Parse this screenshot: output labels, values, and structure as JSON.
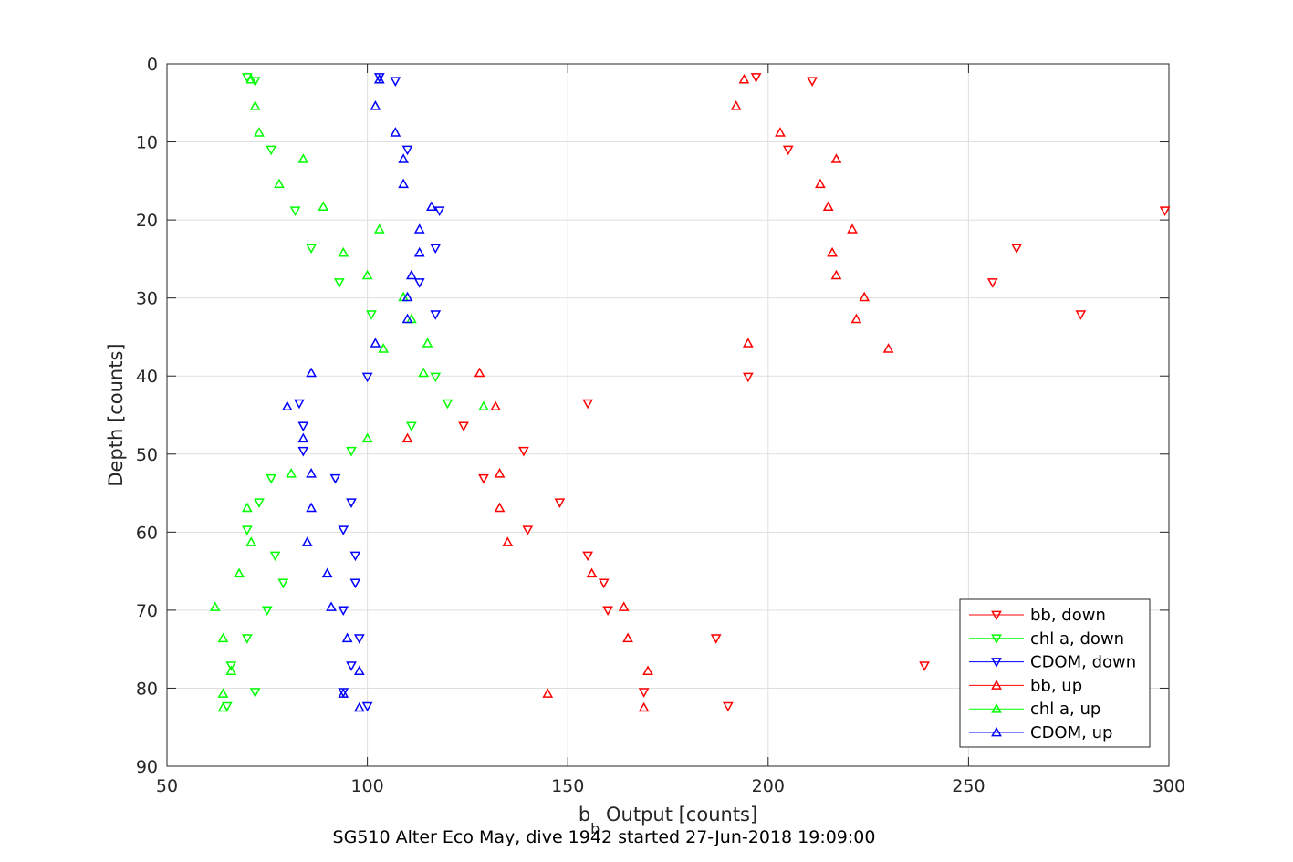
{
  "chart_data": {
    "type": "scatter",
    "title": "",
    "xlabel_main": "b",
    "xlabel_sub": "b",
    "xlabel_rest": " Output [counts]",
    "ylabel": "Depth [counts]",
    "caption": "SG510 Alter Eco May, dive 1942 started 27-Jun-2018 19:09:00",
    "xlim": [
      50,
      300
    ],
    "ylim": [
      0,
      90
    ],
    "y_reversed": true,
    "xticks": [
      50,
      100,
      150,
      200,
      250,
      300
    ],
    "yticks": [
      0,
      10,
      20,
      30,
      40,
      50,
      60,
      70,
      80,
      90
    ],
    "grid": true,
    "legend_position": "bottom-right",
    "series": [
      {
        "name": "bb, down",
        "color": "#ff0000",
        "marker": "triangle-down",
        "points": [
          [
            197,
            1.7
          ],
          [
            211,
            2.2
          ],
          [
            205,
            11
          ],
          [
            299,
            18.8
          ],
          [
            262,
            23.6
          ],
          [
            256,
            28
          ],
          [
            278,
            32.1
          ],
          [
            195,
            40.1
          ],
          [
            155,
            43.5
          ],
          [
            124,
            46.4
          ],
          [
            139,
            49.6
          ],
          [
            129,
            53.1
          ],
          [
            148,
            56.2
          ],
          [
            140,
            59.7
          ],
          [
            155,
            63
          ],
          [
            159,
            66.5
          ],
          [
            160,
            70
          ],
          [
            187,
            73.6
          ],
          [
            239,
            77.1
          ],
          [
            169,
            80.5
          ],
          [
            190,
            82.3
          ]
        ]
      },
      {
        "name": "chl a, down",
        "color": "#00ff00",
        "marker": "triangle-down",
        "points": [
          [
            70,
            1.7
          ],
          [
            72,
            2.2
          ],
          [
            76,
            11
          ],
          [
            82,
            18.8
          ],
          [
            86,
            23.6
          ],
          [
            93,
            28
          ],
          [
            101,
            32.1
          ],
          [
            117,
            40.1
          ],
          [
            120,
            43.5
          ],
          [
            111,
            46.4
          ],
          [
            96,
            49.6
          ],
          [
            76,
            53.1
          ],
          [
            73,
            56.2
          ],
          [
            70,
            59.7
          ],
          [
            77,
            63
          ],
          [
            79,
            66.5
          ],
          [
            75,
            70
          ],
          [
            70,
            73.6
          ],
          [
            66,
            77.1
          ],
          [
            72,
            80.5
          ],
          [
            65,
            82.3
          ]
        ]
      },
      {
        "name": "CDOM, down",
        "color": "#0000ff",
        "marker": "triangle-down",
        "points": [
          [
            103,
            1.7
          ],
          [
            107,
            2.2
          ],
          [
            110,
            11
          ],
          [
            118,
            18.8
          ],
          [
            117,
            23.6
          ],
          [
            113,
            28
          ],
          [
            117,
            32.1
          ],
          [
            100,
            40.1
          ],
          [
            83,
            43.5
          ],
          [
            84,
            46.4
          ],
          [
            84,
            49.6
          ],
          [
            92,
            53.1
          ],
          [
            96,
            56.2
          ],
          [
            94,
            59.7
          ],
          [
            97,
            63
          ],
          [
            97,
            66.5
          ],
          [
            94,
            70
          ],
          [
            98,
            73.6
          ],
          [
            96,
            77.1
          ],
          [
            94,
            80.5
          ],
          [
            100,
            82.3
          ]
        ]
      },
      {
        "name": "bb, up",
        "color": "#ff0000",
        "marker": "triangle-up",
        "points": [
          [
            194,
            2
          ],
          [
            192,
            5.4
          ],
          [
            203,
            8.8
          ],
          [
            217,
            12.2
          ],
          [
            213,
            15.4
          ],
          [
            215,
            18.3
          ],
          [
            221,
            21.2
          ],
          [
            216,
            24.2
          ],
          [
            217,
            27.1
          ],
          [
            224,
            29.9
          ],
          [
            222,
            32.7
          ],
          [
            230,
            36.5
          ],
          [
            195,
            35.8
          ],
          [
            128,
            39.6
          ],
          [
            132,
            43.9
          ],
          [
            110,
            48
          ],
          [
            133,
            52.5
          ],
          [
            133,
            56.9
          ],
          [
            135,
            61.3
          ],
          [
            156,
            65.3
          ],
          [
            164,
            69.6
          ],
          [
            165,
            73.6
          ],
          [
            170,
            77.8
          ],
          [
            145,
            80.7
          ],
          [
            169,
            82.5
          ]
        ]
      },
      {
        "name": "chl a, up",
        "color": "#00ff00",
        "marker": "triangle-up",
        "points": [
          [
            71,
            2
          ],
          [
            72,
            5.4
          ],
          [
            73,
            8.8
          ],
          [
            84,
            12.2
          ],
          [
            78,
            15.4
          ],
          [
            89,
            18.3
          ],
          [
            103,
            21.2
          ],
          [
            94,
            24.2
          ],
          [
            100,
            27.1
          ],
          [
            109,
            29.9
          ],
          [
            111,
            32.7
          ],
          [
            104,
            36.5
          ],
          [
            115,
            35.8
          ],
          [
            114,
            39.6
          ],
          [
            129,
            43.9
          ],
          [
            100,
            48
          ],
          [
            81,
            52.5
          ],
          [
            70,
            56.9
          ],
          [
            71,
            61.3
          ],
          [
            68,
            65.3
          ],
          [
            62,
            69.6
          ],
          [
            64,
            73.6
          ],
          [
            66,
            77.8
          ],
          [
            64,
            80.7
          ],
          [
            64,
            82.5
          ]
        ]
      },
      {
        "name": "CDOM, up",
        "color": "#0000ff",
        "marker": "triangle-up",
        "points": [
          [
            103,
            2
          ],
          [
            102,
            5.4
          ],
          [
            107,
            8.8
          ],
          [
            109,
            12.2
          ],
          [
            109,
            15.4
          ],
          [
            116,
            18.3
          ],
          [
            113,
            21.2
          ],
          [
            113,
            24.2
          ],
          [
            111,
            27.1
          ],
          [
            110,
            29.9
          ],
          [
            110,
            32.7
          ],
          [
            102,
            35.8
          ],
          [
            86,
            39.6
          ],
          [
            80,
            43.9
          ],
          [
            84,
            48
          ],
          [
            86,
            52.5
          ],
          [
            86,
            56.9
          ],
          [
            85,
            61.3
          ],
          [
            90,
            65.3
          ],
          [
            91,
            69.6
          ],
          [
            95,
            73.6
          ],
          [
            98,
            77.8
          ],
          [
            94,
            80.7
          ],
          [
            98,
            82.5
          ]
        ]
      }
    ]
  }
}
